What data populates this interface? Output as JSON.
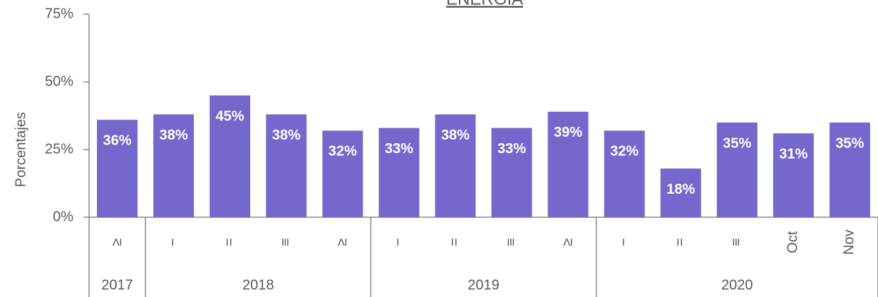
{
  "chart_data": {
    "type": "bar",
    "title": "ENERGÍA",
    "y_label": "Porcentajes",
    "groups": [
      {
        "label": "2017",
        "categories": [
          "≥"
        ]
      },
      {
        "label": "2018",
        "categories": [
          "−",
          "=",
          "≡",
          "≥"
        ]
      },
      {
        "label": "2019",
        "categories": [
          "−",
          "=",
          "≡",
          "≥"
        ]
      },
      {
        "label": "2020",
        "categories": [
          "−",
          "=",
          "≡",
          "Oct",
          "Nov"
        ]
      }
    ],
    "values": [
      36,
      38,
      45,
      38,
      32,
      33,
      38,
      33,
      39,
      32,
      18,
      35,
      31,
      35
    ],
    "value_labels": [
      "36%",
      "38%",
      "45%",
      "38%",
      "32%",
      "33%",
      "38%",
      "33%",
      "39%",
      "32%",
      "18%",
      "35%",
      "31%",
      "35%"
    ],
    "color": "#7468cc",
    "ylim": [
      0,
      75
    ],
    "yticks": [
      {
        "value": 0,
        "label": "0%"
      },
      {
        "value": 25,
        "label": "25%"
      },
      {
        "value": 50,
        "label": "50%"
      },
      {
        "value": 75,
        "label": "75%"
      }
    ]
  }
}
